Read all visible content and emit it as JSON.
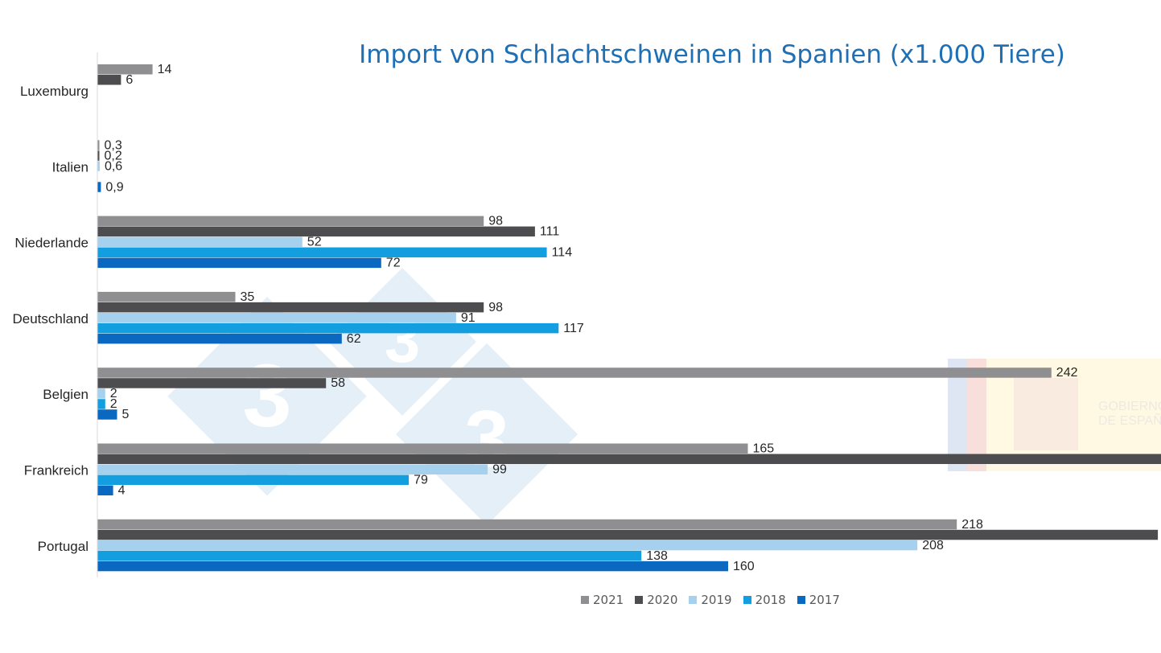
{
  "chart_data": {
    "type": "bar",
    "orientation": "horizontal",
    "title": "Import von Schlachtschweinen in Spanien (x1.000 Tiere)",
    "categories": [
      "Luxemburg",
      "Italien",
      "Niederlande",
      "Deutschland",
      "Belgien",
      "Frankreich",
      "Portugal"
    ],
    "series": [
      {
        "name": "2021",
        "color": "#8f8f91",
        "values": [
          14,
          0.3,
          98,
          35,
          242,
          165,
          218
        ],
        "labels": [
          "14",
          "0,3",
          "98",
          "35",
          "242",
          "165",
          "218"
        ]
      },
      {
        "name": "2020",
        "color": "#4d4d4f",
        "values": [
          6,
          0.2,
          111,
          98,
          58,
          275,
          269
        ],
        "labels": [
          "6",
          "0,2",
          "111",
          "98",
          "58",
          "",
          ""
        ]
      },
      {
        "name": "2019",
        "color": "#a6d1ee",
        "values": [
          null,
          0.6,
          52,
          91,
          2,
          99,
          208
        ],
        "labels": [
          "",
          "0,6",
          "52",
          "91",
          "2",
          "99",
          "208"
        ]
      },
      {
        "name": "2018",
        "color": "#139fdf",
        "values": [
          null,
          null,
          114,
          117,
          2,
          79,
          138
        ],
        "labels": [
          "",
          "",
          "114",
          "117",
          "2",
          "79",
          "138"
        ]
      },
      {
        "name": "2017",
        "color": "#0b68c0",
        "values": [
          null,
          0.9,
          72,
          62,
          5,
          4,
          160
        ],
        "labels": [
          "",
          "0,9",
          "72",
          "62",
          "5",
          "4",
          "160"
        ]
      }
    ],
    "xlim": [
      0,
      269
    ],
    "grid": false,
    "legend_position": "bottom",
    "watermark": {
      "logo_text": "333",
      "seal_text": "GOBIERNO DE ESPAÑA"
    }
  }
}
